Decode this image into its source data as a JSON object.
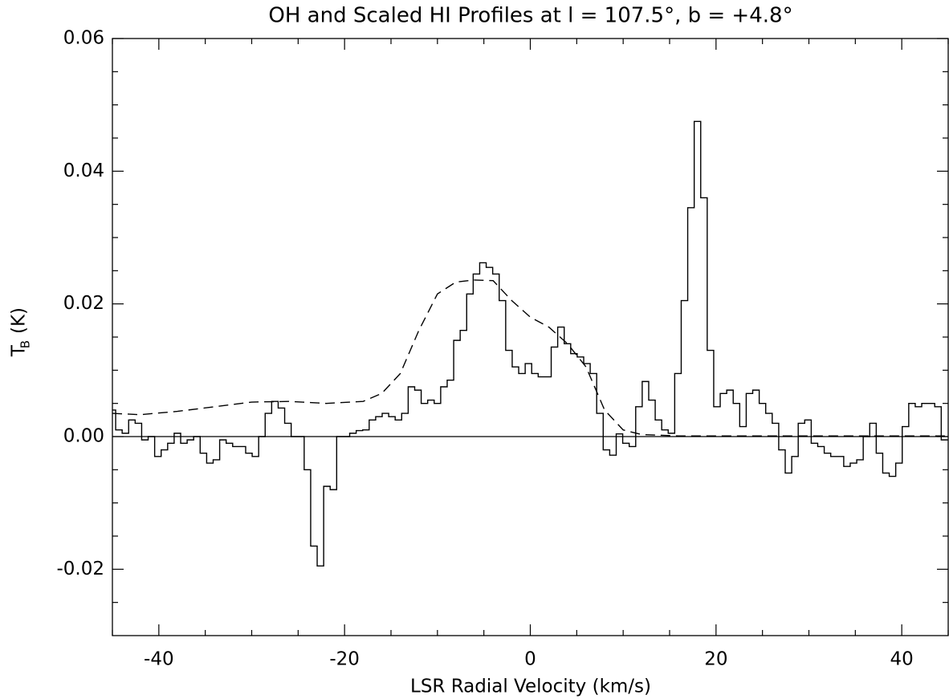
{
  "chart_data": {
    "type": "step",
    "title": "OH and Scaled HI Profiles at l = 107.5°, b = +4.8°",
    "xlabel": "LSR Radial Velocity (km/s)",
    "ylabel": {
      "main": "T",
      "sub": "B",
      "unit": "(K)"
    },
    "xlim": [
      -45,
      45
    ],
    "ylim": [
      -0.03,
      0.06
    ],
    "xticks": [
      -40,
      -20,
      0,
      20,
      40
    ],
    "yticks": [
      {
        "value": -0.02,
        "label": "-0.02"
      },
      {
        "value": 0,
        "label": "0.00"
      },
      0.02,
      0.04,
      0.06
    ],
    "xminorticks": [
      -45,
      -35,
      -30,
      -25,
      -15,
      -10,
      -5,
      5,
      10,
      15,
      25,
      30,
      35,
      45
    ],
    "yminorticks": [
      -0.025,
      -0.015,
      -0.01,
      -0.005,
      0.005,
      0.01,
      0.015,
      0.025,
      0.03,
      0.035,
      0.045,
      0.05,
      0.055
    ],
    "zero_line": true,
    "series": [
      {
        "name": "OH",
        "color": "#000000",
        "style": "step",
        "x": [
          -45,
          -44.3,
          -43.6,
          -42.9,
          -42.2,
          -41.5,
          -40.8,
          -40.1,
          -39.4,
          -38.7,
          -38,
          -37.3,
          -36.6,
          -35.9,
          -35.2,
          -34.5,
          -33.8,
          -33.1,
          -32.4,
          -31.7,
          -31,
          -30.3,
          -29.6,
          -28.9,
          -28.2,
          -27.5,
          -26.8,
          -26.1,
          -25.4,
          -24.7,
          -24,
          -23.3,
          -22.6,
          -21.9,
          -21.2,
          -20.5,
          -19.8,
          -19.1,
          -18.4,
          -17.7,
          -17,
          -16.3,
          -15.6,
          -14.9,
          -14.2,
          -13.5,
          -12.8,
          -12.1,
          -11.4,
          -10.7,
          -10,
          -9.3,
          -8.6,
          -7.9,
          -7.2,
          -6.5,
          -5.8,
          -5.1,
          -4.4,
          -3.7,
          -3,
          -2.3,
          -1.6,
          -0.9,
          -0.2,
          0.5,
          1.2,
          1.9,
          2.6,
          3.3,
          4,
          4.7,
          5.4,
          6.1,
          6.8,
          7.5,
          8.2,
          8.9,
          9.6,
          10.3,
          11,
          11.7,
          12.4,
          13.1,
          13.8,
          14.5,
          15.2,
          15.9,
          16.6,
          17.3,
          18,
          18.7,
          19.4,
          20.1,
          20.8,
          21.5,
          22.2,
          22.9,
          23.6,
          24.3,
          25,
          25.7,
          26.4,
          27.1,
          27.8,
          28.5,
          29.2,
          29.9,
          30.6,
          31.3,
          32,
          32.7,
          33.4,
          34.1,
          34.8,
          35.5,
          36.2,
          36.9,
          37.6,
          38.3,
          39,
          39.7,
          40.4,
          41.1,
          41.8,
          42.5,
          43.2,
          43.9,
          44.6
        ],
        "values": [
          0.004,
          0.001,
          0.0005,
          0.0025,
          0.002,
          -0.0005,
          0,
          -0.003,
          -0.002,
          -0.001,
          0.0005,
          -0.001,
          -0.0005,
          0,
          -0.0025,
          -0.004,
          -0.0035,
          -0.0005,
          -0.001,
          -0.0015,
          -0.0015,
          -0.0025,
          -0.003,
          0,
          0.0035,
          0.0053,
          0.0043,
          0.002,
          0,
          0,
          -0.005,
          -0.0165,
          -0.0195,
          -0.0075,
          -0.008,
          0,
          0,
          0.0005,
          0.0009,
          0.001,
          0.0025,
          0.003,
          0.0035,
          0.003,
          0.0025,
          0.0035,
          0.0075,
          0.007,
          0.005,
          0.0055,
          0.005,
          0.0075,
          0.0085,
          0.0145,
          0.016,
          0.0215,
          0.0245,
          0.0262,
          0.0255,
          0.0245,
          0.0205,
          0.013,
          0.0105,
          0.0095,
          0.011,
          0.0095,
          0.009,
          0.009,
          0.0135,
          0.0165,
          0.014,
          0.0125,
          0.012,
          0.011,
          0.0095,
          0.0035,
          -0.002,
          -0.0028,
          0.0004,
          -0.001,
          -0.0015,
          0.0045,
          0.0083,
          0.0055,
          0.0025,
          0.001,
          0.0005,
          0.0095,
          0.0205,
          0.0345,
          0.0475,
          0.036,
          0.013,
          0.0045,
          0.0065,
          0.007,
          0.005,
          0.0015,
          0.0065,
          0.007,
          0.005,
          0.0035,
          0.002,
          -0.002,
          -0.0055,
          -0.003,
          0.002,
          0.0025,
          -0.001,
          -0.0015,
          -0.0025,
          -0.003,
          -0.003,
          -0.0045,
          -0.004,
          -0.0035,
          0,
          0.002,
          -0.0025,
          -0.0055,
          -0.006,
          -0.004,
          0.0015,
          0.005,
          0.0045,
          0.005,
          0.005,
          0.0045,
          -0.0005
        ]
      },
      {
        "name": "HI",
        "color": "#000000",
        "style": "dashed",
        "x": [
          -45,
          -42,
          -38,
          -34,
          -30,
          -26,
          -22,
          -18,
          -16,
          -14,
          -12,
          -10,
          -8,
          -6,
          -4,
          -2,
          0,
          2,
          4,
          6,
          8,
          10,
          12,
          16,
          20,
          30,
          45
        ],
        "values": [
          0.0035,
          0.0033,
          0.0038,
          0.0045,
          0.0052,
          0.0053,
          0.005,
          0.0053,
          0.0065,
          0.0095,
          0.016,
          0.0215,
          0.0233,
          0.0236,
          0.0235,
          0.0205,
          0.018,
          0.0165,
          0.014,
          0.0105,
          0.004,
          0.001,
          0.0003,
          0.0001,
          0.0001,
          0.0001,
          0.0001
        ]
      }
    ]
  }
}
